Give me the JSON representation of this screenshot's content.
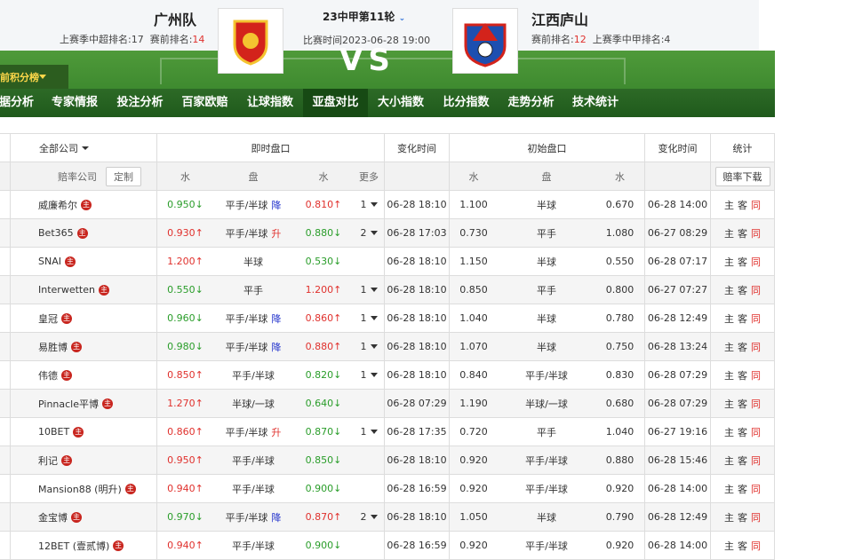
{
  "header": {
    "standings": "前积分榜",
    "home_team": "广州队",
    "home_last_season": "上赛季中超排名:17",
    "home_rank_label": "赛前排名:",
    "home_rank": "14",
    "round": "23中甲第11轮",
    "match_time": "比赛时间2023-06-28 19:00",
    "away_team": "江西庐山",
    "away_rank_label": "赛前排名:",
    "away_rank": "12",
    "away_last_season": "上赛季中甲排名:4",
    "vs": "VS"
  },
  "nav": {
    "items": [
      "据分析",
      "专家情报",
      "投注分析",
      "百家欧赔",
      "让球指数",
      "亚盘对比",
      "大小指数",
      "比分指数",
      "走势分析",
      "技术统计"
    ],
    "active": 5
  },
  "table": {
    "group_headers": {
      "company": "全部公司",
      "live": "即时盘口",
      "live_time": "变化时间",
      "initial": "初始盘口",
      "init_time": "变化时间",
      "stats": "统计"
    },
    "sub_headers": {
      "company": "赔率公司",
      "custom": "定制",
      "home": "水",
      "line": "盘",
      "away": "水",
      "more": "更多",
      "init_home": "水",
      "init_line": "盘",
      "init_away": "水",
      "download": "赔率下载"
    },
    "badge": "主",
    "stats_labels": [
      "主",
      "客",
      "同"
    ],
    "rows": [
      {
        "company": "威廉希尔",
        "home": "0.950",
        "home_dir": "↓",
        "line": "平手/半球",
        "line_change": "降",
        "away": "0.810",
        "away_dir": "↑",
        "more": "1",
        "time": "06-28 18:10",
        "init_home": "1.100",
        "init_line": "半球",
        "init_away": "0.670",
        "init_time": "06-28 14:00"
      },
      {
        "company": "Bet365",
        "home": "0.930",
        "home_dir": "↑",
        "line": "平手/半球",
        "line_change": "升",
        "away": "0.880",
        "away_dir": "↓",
        "more": "2",
        "time": "06-28 17:03",
        "init_home": "0.730",
        "init_line": "平手",
        "init_away": "1.080",
        "init_time": "06-27 08:29"
      },
      {
        "company": "SNAI",
        "home": "1.200",
        "home_dir": "↑",
        "line": "半球",
        "line_change": null,
        "away": "0.530",
        "away_dir": "↓",
        "more": null,
        "time": "06-28 18:10",
        "init_home": "1.150",
        "init_line": "半球",
        "init_away": "0.550",
        "init_time": "06-28 07:17"
      },
      {
        "company": "Interwetten",
        "home": "0.550",
        "home_dir": "↓",
        "line": "平手",
        "line_change": null,
        "away": "1.200",
        "away_dir": "↑",
        "more": "1",
        "time": "06-28 18:10",
        "init_home": "0.850",
        "init_line": "平手",
        "init_away": "0.800",
        "init_time": "06-27 07:27"
      },
      {
        "company": "皇冠",
        "home": "0.960",
        "home_dir": "↓",
        "line": "平手/半球",
        "line_change": "降",
        "away": "0.860",
        "away_dir": "↑",
        "more": "1",
        "time": "06-28 18:10",
        "init_home": "1.040",
        "init_line": "半球",
        "init_away": "0.780",
        "init_time": "06-28 12:49"
      },
      {
        "company": "易胜博",
        "home": "0.980",
        "home_dir": "↓",
        "line": "平手/半球",
        "line_change": "降",
        "away": "0.880",
        "away_dir": "↑",
        "more": "1",
        "time": "06-28 18:10",
        "init_home": "1.070",
        "init_line": "半球",
        "init_away": "0.750",
        "init_time": "06-28 13:24"
      },
      {
        "company": "伟德",
        "home": "0.850",
        "home_dir": "↑",
        "line": "平手/半球",
        "line_change": null,
        "away": "0.820",
        "away_dir": "↓",
        "more": "1",
        "time": "06-28 18:10",
        "init_home": "0.840",
        "init_line": "平手/半球",
        "init_away": "0.830",
        "init_time": "06-28 07:29"
      },
      {
        "company": "Pinnacle平博",
        "home": "1.270",
        "home_dir": "↑",
        "line": "半球/一球",
        "line_change": null,
        "away": "0.640",
        "away_dir": "↓",
        "more": null,
        "time": "06-28 07:29",
        "init_home": "1.190",
        "init_line": "半球/一球",
        "init_away": "0.680",
        "init_time": "06-28 07:29"
      },
      {
        "company": "10BET",
        "home": "0.860",
        "home_dir": "↑",
        "line": "平手/半球",
        "line_change": "升",
        "away": "0.870",
        "away_dir": "↓",
        "more": "1",
        "time": "06-28 17:35",
        "init_home": "0.720",
        "init_line": "平手",
        "init_away": "1.040",
        "init_time": "06-27 19:16"
      },
      {
        "company": "利记",
        "home": "0.950",
        "home_dir": "↑",
        "line": "平手/半球",
        "line_change": null,
        "away": "0.850",
        "away_dir": "↓",
        "more": null,
        "time": "06-28 18:10",
        "init_home": "0.920",
        "init_line": "平手/半球",
        "init_away": "0.880",
        "init_time": "06-28 15:46"
      },
      {
        "company": "Mansion88 (明升)",
        "home": "0.940",
        "home_dir": "↑",
        "line": "平手/半球",
        "line_change": null,
        "away": "0.900",
        "away_dir": "↓",
        "more": null,
        "time": "06-28 16:59",
        "init_home": "0.920",
        "init_line": "平手/半球",
        "init_away": "0.920",
        "init_time": "06-28 14:00"
      },
      {
        "company": "金宝博",
        "home": "0.970",
        "home_dir": "↓",
        "line": "平手/半球",
        "line_change": "降",
        "away": "0.870",
        "away_dir": "↑",
        "more": "2",
        "time": "06-28 18:10",
        "init_home": "1.050",
        "init_line": "半球",
        "init_away": "0.790",
        "init_time": "06-28 12:49"
      },
      {
        "company": "12BET (壹贰博)",
        "home": "0.940",
        "home_dir": "↑",
        "line": "平手/半球",
        "line_change": null,
        "away": "0.900",
        "away_dir": "↓",
        "more": null,
        "time": "06-28 16:59",
        "init_home": "0.920",
        "init_line": "平手/半球",
        "init_away": "0.920",
        "init_time": "06-28 14:00"
      }
    ]
  }
}
